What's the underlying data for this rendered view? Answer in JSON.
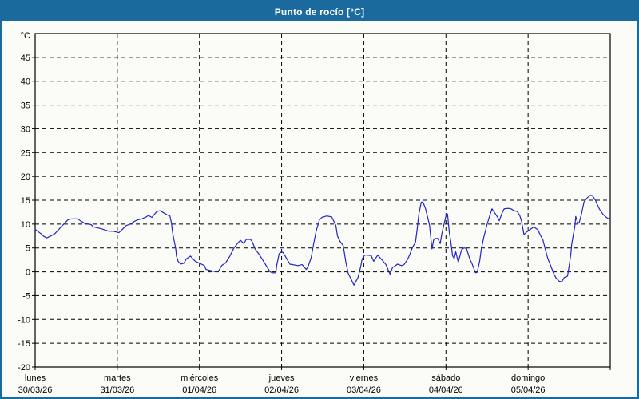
{
  "window": {
    "title": "Punto de rocío [°C]"
  },
  "colors": {
    "frame": "#1b6a9d",
    "titlebar_bg": "#1b6a9d",
    "titlebar_text": "#ffffff",
    "background": "#fbfcf7",
    "line": "#2323c8",
    "grid": "#000000",
    "axis_text": "#000000"
  },
  "chart_data": {
    "type": "line",
    "title": "Punto de rocío [°C]",
    "ylabel": "°C",
    "xlabel": "",
    "ylim": [
      -20,
      50
    ],
    "ytick_step": 5,
    "ytick_labels": [
      45,
      40,
      35,
      30,
      25,
      20,
      15,
      10,
      5,
      0,
      -5,
      -10,
      -15,
      -20
    ],
    "grid": "dashed",
    "legend": "none",
    "days": [
      {
        "name": "lunes",
        "date": "30/03/26"
      },
      {
        "name": "martes",
        "date": "31/03/26"
      },
      {
        "name": "miércoles",
        "date": "01/04/26"
      },
      {
        "name": "jueves",
        "date": "02/04/26"
      },
      {
        "name": "viernes",
        "date": "03/04/26"
      },
      {
        "name": "sábado",
        "date": "04/04/26"
      },
      {
        "name": "domingo",
        "date": "05/04/26"
      }
    ],
    "series": [
      {
        "name": "Punto de rocío",
        "color": "#2323c8",
        "x_unit": "days_from_start",
        "points": [
          [
            0.0,
            8.9
          ],
          [
            0.03,
            8.5
          ],
          [
            0.07,
            8.0
          ],
          [
            0.1,
            7.5
          ],
          [
            0.14,
            7.1
          ],
          [
            0.19,
            7.5
          ],
          [
            0.24,
            8.0
          ],
          [
            0.29,
            8.9
          ],
          [
            0.32,
            9.5
          ],
          [
            0.36,
            10.2
          ],
          [
            0.4,
            10.9
          ],
          [
            0.44,
            11.1
          ],
          [
            0.52,
            11.1
          ],
          [
            0.55,
            10.7
          ],
          [
            0.61,
            10.1
          ],
          [
            0.65,
            10.0
          ],
          [
            0.68,
            9.9
          ],
          [
            0.71,
            9.4
          ],
          [
            0.76,
            9.2
          ],
          [
            0.81,
            9.0
          ],
          [
            0.86,
            8.7
          ],
          [
            0.9,
            8.5
          ],
          [
            0.95,
            8.5
          ],
          [
            1.02,
            8.2
          ],
          [
            1.08,
            9.2
          ],
          [
            1.11,
            9.7
          ],
          [
            1.16,
            10.0
          ],
          [
            1.21,
            10.6
          ],
          [
            1.25,
            10.9
          ],
          [
            1.3,
            11.1
          ],
          [
            1.35,
            11.5
          ],
          [
            1.38,
            11.8
          ],
          [
            1.42,
            11.4
          ],
          [
            1.45,
            12.0
          ],
          [
            1.48,
            12.6
          ],
          [
            1.52,
            12.8
          ],
          [
            1.58,
            12.2
          ],
          [
            1.61,
            11.9
          ],
          [
            1.64,
            11.7
          ],
          [
            1.66,
            10.2
          ],
          [
            1.67,
            8.5
          ],
          [
            1.69,
            6.7
          ],
          [
            1.71,
            5.0
          ],
          [
            1.72,
            3.3
          ],
          [
            1.74,
            2.2
          ],
          [
            1.77,
            1.6
          ],
          [
            1.81,
            1.8
          ],
          [
            1.84,
            2.7
          ],
          [
            1.89,
            3.3
          ],
          [
            1.92,
            2.7
          ],
          [
            1.95,
            2.2
          ],
          [
            2.0,
            1.8
          ],
          [
            2.06,
            1.3
          ],
          [
            2.08,
            0.5
          ],
          [
            2.13,
            0.3
          ],
          [
            2.18,
            0.1
          ],
          [
            2.23,
            0.1
          ],
          [
            2.27,
            1.3
          ],
          [
            2.32,
            1.9
          ],
          [
            2.37,
            3.3
          ],
          [
            2.42,
            5.0
          ],
          [
            2.47,
            6.1
          ],
          [
            2.5,
            6.6
          ],
          [
            2.54,
            5.9
          ],
          [
            2.57,
            6.8
          ],
          [
            2.62,
            6.8
          ],
          [
            2.64,
            6.4
          ],
          [
            2.68,
            4.7
          ],
          [
            2.73,
            3.6
          ],
          [
            2.78,
            2.2
          ],
          [
            2.83,
            0.8
          ],
          [
            2.86,
            0.0
          ],
          [
            2.89,
            -0.2
          ],
          [
            2.93,
            -0.2
          ],
          [
            2.94,
            1.3
          ],
          [
            2.96,
            3.0
          ],
          [
            2.97,
            3.8
          ],
          [
            3.0,
            4.2
          ],
          [
            3.02,
            4.0
          ],
          [
            3.1,
            1.6
          ],
          [
            3.2,
            1.3
          ],
          [
            3.25,
            1.5
          ],
          [
            3.3,
            0.5
          ],
          [
            3.32,
            1.0
          ],
          [
            3.36,
            3.0
          ],
          [
            3.39,
            5.9
          ],
          [
            3.42,
            8.5
          ],
          [
            3.46,
            10.9
          ],
          [
            3.49,
            11.4
          ],
          [
            3.55,
            11.7
          ],
          [
            3.61,
            11.5
          ],
          [
            3.66,
            9.7
          ],
          [
            3.68,
            7.5
          ],
          [
            3.71,
            6.4
          ],
          [
            3.75,
            5.5
          ],
          [
            3.78,
            2.2
          ],
          [
            3.81,
            -0.3
          ],
          [
            3.85,
            -1.7
          ],
          [
            3.88,
            -2.8
          ],
          [
            3.93,
            -1.2
          ],
          [
            3.96,
            0.9
          ],
          [
            3.98,
            2.7
          ],
          [
            4.01,
            3.5
          ],
          [
            4.04,
            3.5
          ],
          [
            4.09,
            3.4
          ],
          [
            4.12,
            2.2
          ],
          [
            4.17,
            3.5
          ],
          [
            4.22,
            2.5
          ],
          [
            4.27,
            1.5
          ],
          [
            4.32,
            -0.5
          ],
          [
            4.35,
            0.9
          ],
          [
            4.38,
            1.2
          ],
          [
            4.41,
            1.6
          ],
          [
            4.46,
            1.3
          ],
          [
            4.49,
            1.5
          ],
          [
            4.53,
            2.5
          ],
          [
            4.56,
            3.6
          ],
          [
            4.59,
            5.0
          ],
          [
            4.63,
            6.2
          ],
          [
            4.65,
            9.0
          ],
          [
            4.67,
            12.0
          ],
          [
            4.7,
            14.6
          ],
          [
            4.72,
            14.6
          ],
          [
            4.75,
            13.3
          ],
          [
            4.78,
            11.2
          ],
          [
            4.8,
            9.8
          ],
          [
            4.82,
            6.4
          ],
          [
            4.83,
            4.8
          ],
          [
            4.85,
            6.7
          ],
          [
            4.87,
            7.0
          ],
          [
            4.9,
            7.0
          ],
          [
            4.93,
            5.9
          ],
          [
            4.95,
            7.9
          ],
          [
            4.97,
            9.5
          ],
          [
            5.0,
            11.7
          ],
          [
            5.02,
            12.1
          ],
          [
            5.04,
            8.4
          ],
          [
            5.06,
            6.2
          ],
          [
            5.08,
            3.4
          ],
          [
            5.1,
            2.8
          ],
          [
            5.12,
            4.2
          ],
          [
            5.15,
            2.0
          ],
          [
            5.19,
            4.6
          ],
          [
            5.22,
            5.0
          ],
          [
            5.25,
            4.9
          ],
          [
            5.29,
            2.7
          ],
          [
            5.32,
            1.6
          ],
          [
            5.36,
            -0.2
          ],
          [
            5.38,
            -0.1
          ],
          [
            5.41,
            2.2
          ],
          [
            5.43,
            4.7
          ],
          [
            5.46,
            7.2
          ],
          [
            5.5,
            9.9
          ],
          [
            5.53,
            11.6
          ],
          [
            5.56,
            13.2
          ],
          [
            5.6,
            12.2
          ],
          [
            5.63,
            11.4
          ],
          [
            5.65,
            10.7
          ],
          [
            5.68,
            12.2
          ],
          [
            5.71,
            13.2
          ],
          [
            5.76,
            13.3
          ],
          [
            5.79,
            13.2
          ],
          [
            5.83,
            12.8
          ],
          [
            5.87,
            12.6
          ],
          [
            5.9,
            11.7
          ],
          [
            5.92,
            10.6
          ],
          [
            5.95,
            7.8
          ],
          [
            5.98,
            8.3
          ],
          [
            6.02,
            8.8
          ],
          [
            6.07,
            9.4
          ],
          [
            6.12,
            8.8
          ],
          [
            6.14,
            8.0
          ],
          [
            6.18,
            6.7
          ],
          [
            6.21,
            4.7
          ],
          [
            6.24,
            2.8
          ],
          [
            6.28,
            1.1
          ],
          [
            6.31,
            -0.3
          ],
          [
            6.34,
            -1.3
          ],
          [
            6.38,
            -2.0
          ],
          [
            6.41,
            -2.1
          ],
          [
            6.44,
            -1.2
          ],
          [
            6.48,
            -0.9
          ],
          [
            6.5,
            1.3
          ],
          [
            6.52,
            3.6
          ],
          [
            6.53,
            5.7
          ],
          [
            6.55,
            7.7
          ],
          [
            6.57,
            9.7
          ],
          [
            6.58,
            11.6
          ],
          [
            6.6,
            10.4
          ],
          [
            6.62,
            10.2
          ],
          [
            6.65,
            12.1
          ],
          [
            6.68,
            14.6
          ],
          [
            6.72,
            15.5
          ],
          [
            6.75,
            16.0
          ],
          [
            6.78,
            16.0
          ],
          [
            6.82,
            15.0
          ],
          [
            6.84,
            14.2
          ],
          [
            6.87,
            13.1
          ],
          [
            6.91,
            12.1
          ],
          [
            6.94,
            11.6
          ],
          [
            6.97,
            11.2
          ],
          [
            7.0,
            11.1
          ]
        ]
      }
    ]
  }
}
